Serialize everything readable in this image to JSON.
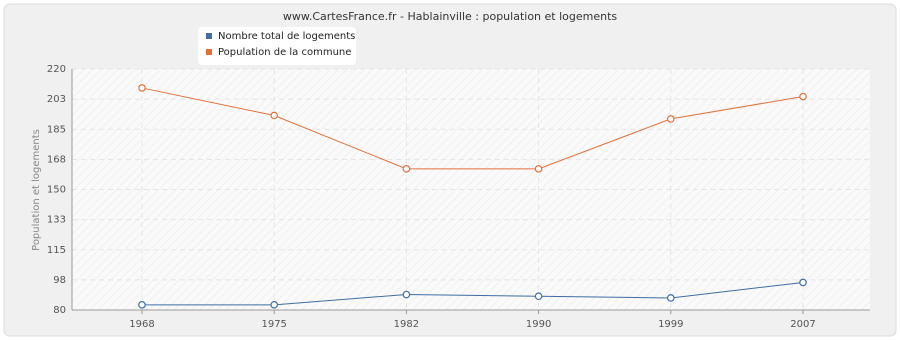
{
  "chart_data": {
    "type": "line",
    "title": "www.CartesFrance.fr - Hablainville : population et logements",
    "y_label": "Population et logements",
    "categories": [
      "1968",
      "1975",
      "1982",
      "1990",
      "1999",
      "2007"
    ],
    "series": [
      {
        "name": "Nombre total de logements",
        "color": "#3e6ea4",
        "values": [
          83,
          83,
          89,
          88,
          87,
          96
        ]
      },
      {
        "name": "Population de la commune",
        "color": "#e0703a",
        "values": [
          209,
          193,
          162,
          162,
          191,
          204
        ]
      }
    ],
    "ylim": [
      80,
      220
    ],
    "yticks": [
      80,
      {
        "value": 97.5,
        "label": "98"
      },
      115,
      {
        "value": 132.5,
        "label": "133"
      },
      150,
      {
        "value": 167.5,
        "label": "168"
      },
      185,
      {
        "value": 202.5,
        "label": "203"
      },
      220
    ],
    "grid": true
  }
}
